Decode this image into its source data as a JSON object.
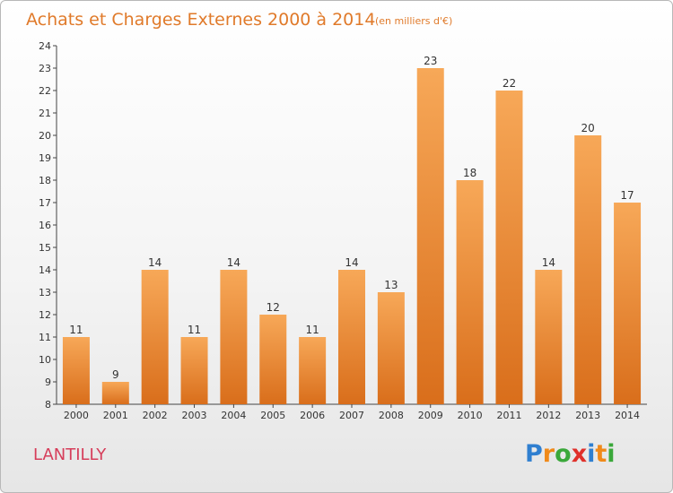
{
  "chart_data": {
    "type": "bar",
    "title": "Achats et Charges Externes 2000 à 2014",
    "subtitle": "(en milliers d'€)",
    "categories": [
      "2000",
      "2001",
      "2002",
      "2003",
      "2004",
      "2005",
      "2006",
      "2007",
      "2008",
      "2009",
      "2010",
      "2011",
      "2012",
      "2013",
      "2014"
    ],
    "values": [
      11,
      9,
      14,
      11,
      14,
      12,
      11,
      14,
      13,
      23,
      18,
      22,
      14,
      20,
      17
    ],
    "ylim": [
      8,
      24
    ],
    "yticks": [
      "8",
      "9",
      "10",
      "11",
      "12",
      "13",
      "14",
      "15",
      "16",
      "17",
      "18",
      "19",
      "20",
      "21",
      "22",
      "23",
      "24"
    ],
    "grid": false,
    "bar_color_top": "#f7a858",
    "bar_color_bottom": "#d96e1b"
  },
  "caption": "LANTILLY",
  "logo": {
    "letters": [
      "P",
      "r",
      "o",
      "x",
      "i",
      "t",
      "i"
    ],
    "colors": [
      "#2f7fd0",
      "#f08a1a",
      "#3aa83a",
      "#e0302a",
      "#2f7fd0",
      "#f08a1a",
      "#3aa83a"
    ]
  }
}
